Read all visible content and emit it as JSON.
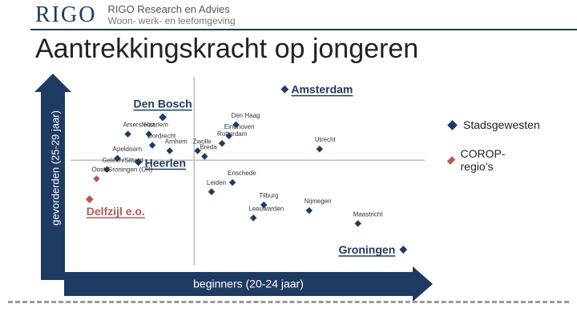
{
  "header": {
    "logo_mark": "RIGO",
    "org_name": "RIGO Research en Advies",
    "tagline": "Woon- werk- en leefomgeving"
  },
  "page_title": "Aantrekkingskracht op jongeren",
  "colors": {
    "stadsgewesten": "#1f3b63",
    "corop": "#b55a5a",
    "axis_arrow": "#1f3b63",
    "highlight_blue": "#1f3b63",
    "highlight_red": "#b55a5a"
  },
  "legend": [
    {
      "label": "Stadsgewesten",
      "series": "stadsgewesten"
    },
    {
      "label": "COROP-regio’s",
      "series": "corop"
    }
  ],
  "chart_data": {
    "type": "scatter",
    "xlabel": "beginners (20-24 jaar)",
    "ylabel": "gevorderden (25-29 jaar)",
    "xlim": [
      0,
      100
    ],
    "ylim": [
      0,
      100
    ],
    "reference_lines": {
      "x": 35,
      "y": 57
    },
    "points": [
      {
        "label": "Amsterdam",
        "x": 61,
        "y": 95,
        "series": "stadsgewesten",
        "highlight": true
      },
      {
        "label": "Den Bosch",
        "x": 26,
        "y": 80,
        "series": "stadsgewesten",
        "highlight": true
      },
      {
        "label": "Den Haag",
        "x": 47,
        "y": 76,
        "series": "stadsgewesten"
      },
      {
        "label": "Amersfoort",
        "x": 16,
        "y": 71,
        "series": "stadsgewesten"
      },
      {
        "label": "Haarlem",
        "x": 22,
        "y": 71,
        "series": "stadsgewesten"
      },
      {
        "label": "Eindhoven",
        "x": 45,
        "y": 70,
        "series": "stadsgewesten"
      },
      {
        "label": "Rotterdam",
        "x": 43,
        "y": 66,
        "series": "stadsgewesten"
      },
      {
        "label": "Dordrecht",
        "x": 23,
        "y": 65,
        "series": "stadsgewesten"
      },
      {
        "label": "Utrecht",
        "x": 71,
        "y": 63,
        "series": "stadsgewesten"
      },
      {
        "label": "Arnhem",
        "x": 28,
        "y": 62,
        "series": "stadsgewesten"
      },
      {
        "label": "Zwolle",
        "x": 36,
        "y": 62,
        "series": "stadsgewesten"
      },
      {
        "label": "Apeldoorn",
        "x": 13,
        "y": 58,
        "series": "stadsgewesten"
      },
      {
        "label": "Breda",
        "x": 38,
        "y": 59,
        "series": "stadsgewesten"
      },
      {
        "label": "Heerlen",
        "x": 19,
        "y": 56,
        "series": "stadsgewesten",
        "highlight": true
      },
      {
        "label": "Geleen/Sittard",
        "x": 10,
        "y": 52,
        "series": "stadsgewesten"
      },
      {
        "label": "Oost-Groningen (CR)",
        "x": 7,
        "y": 47,
        "series": "corop"
      },
      {
        "label": "Enschede",
        "x": 46,
        "y": 45,
        "series": "stadsgewesten"
      },
      {
        "label": "Leiden",
        "x": 40,
        "y": 40,
        "series": "stadsgewesten"
      },
      {
        "label": "Delfzijl e.o.",
        "x": 5,
        "y": 36,
        "series": "corop",
        "highlight": true
      },
      {
        "label": "Tilburg",
        "x": 55,
        "y": 33,
        "series": "stadsgewesten"
      },
      {
        "label": "Nijmegen",
        "x": 68,
        "y": 30,
        "series": "stadsgewesten"
      },
      {
        "label": "Leeuwarden",
        "x": 52,
        "y": 26,
        "series": "stadsgewesten"
      },
      {
        "label": "Maastricht",
        "x": 82,
        "y": 23,
        "series": "stadsgewesten"
      },
      {
        "label": "Groningen",
        "x": 95,
        "y": 9,
        "series": "stadsgewesten",
        "highlight": true
      }
    ]
  }
}
